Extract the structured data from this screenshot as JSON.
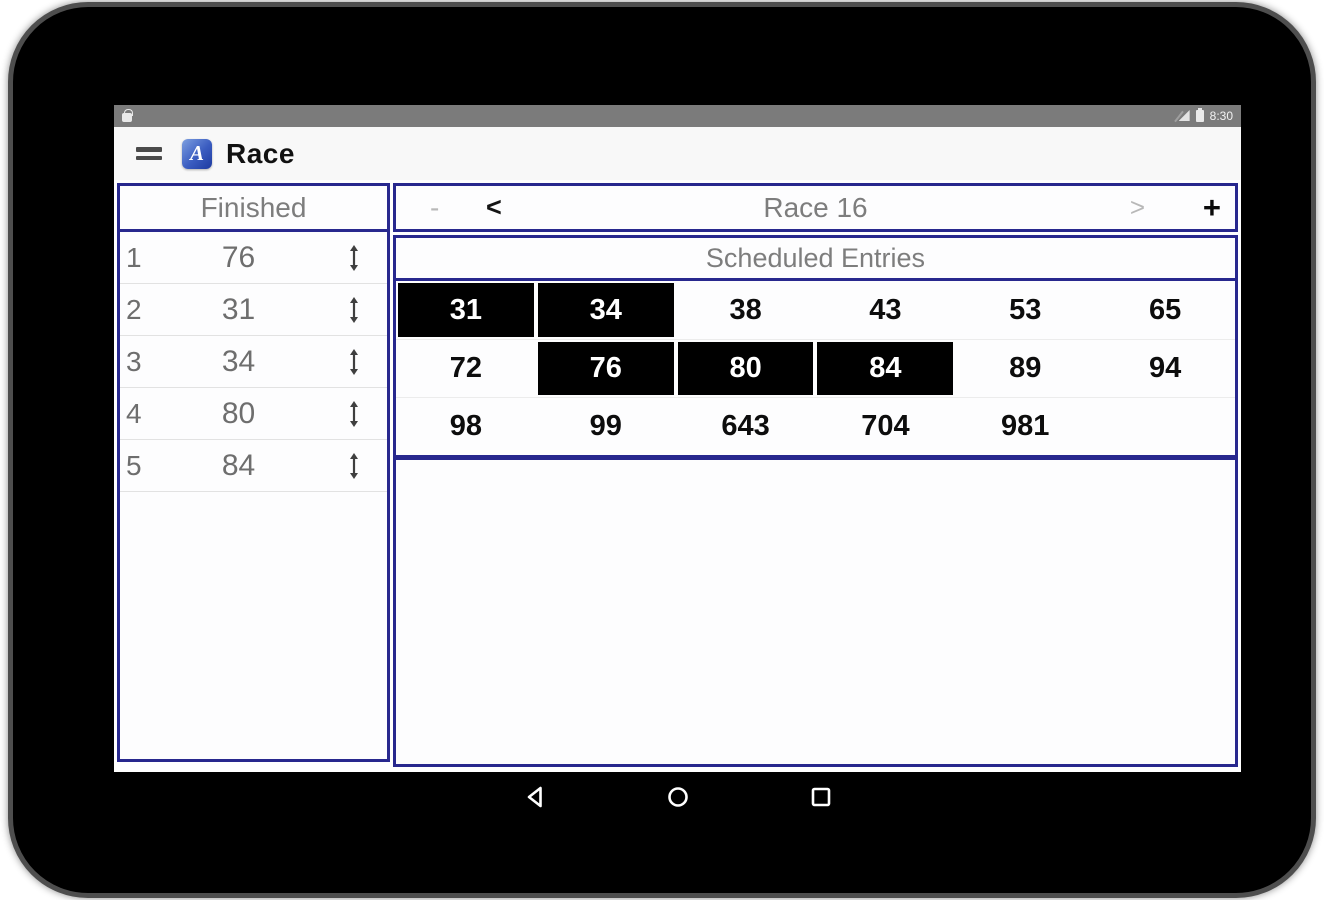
{
  "status_bar": {
    "time": "8:30"
  },
  "toolbar": {
    "title": "Race",
    "app_icon_letter": "A"
  },
  "finished_panel": {
    "title": "Finished",
    "rows": [
      {
        "position": "1",
        "number": "76"
      },
      {
        "position": "2",
        "number": "31"
      },
      {
        "position": "3",
        "number": "34"
      },
      {
        "position": "4",
        "number": "80"
      },
      {
        "position": "5",
        "number": "84"
      }
    ]
  },
  "race_panel": {
    "minus_label": "-",
    "prev_label": "<",
    "title": "Race 16",
    "next_label": ">",
    "plus_label": "+",
    "entries_title": "Scheduled Entries",
    "entries_grid": [
      [
        {
          "number": "31",
          "highlighted": true
        },
        {
          "number": "34",
          "highlighted": true
        },
        {
          "number": "38",
          "highlighted": false
        },
        {
          "number": "43",
          "highlighted": false
        },
        {
          "number": "53",
          "highlighted": false
        },
        {
          "number": "65",
          "highlighted": false
        }
      ],
      [
        {
          "number": "72",
          "highlighted": false
        },
        {
          "number": "76",
          "highlighted": true
        },
        {
          "number": "80",
          "highlighted": true
        },
        {
          "number": "84",
          "highlighted": true
        },
        {
          "number": "89",
          "highlighted": false
        },
        {
          "number": "94",
          "highlighted": false
        }
      ],
      [
        {
          "number": "98",
          "highlighted": false
        },
        {
          "number": "99",
          "highlighted": false
        },
        {
          "number": "643",
          "highlighted": false
        },
        {
          "number": "704",
          "highlighted": false
        },
        {
          "number": "981",
          "highlighted": false
        },
        {
          "number": "",
          "highlighted": false
        }
      ]
    ]
  },
  "colors": {
    "panel_border": "#28288e",
    "highlight_bg": "#000000",
    "highlight_text": "#ffffff",
    "header_text": "#7d7d7d",
    "status_bar_bg": "#7b7b7b"
  }
}
